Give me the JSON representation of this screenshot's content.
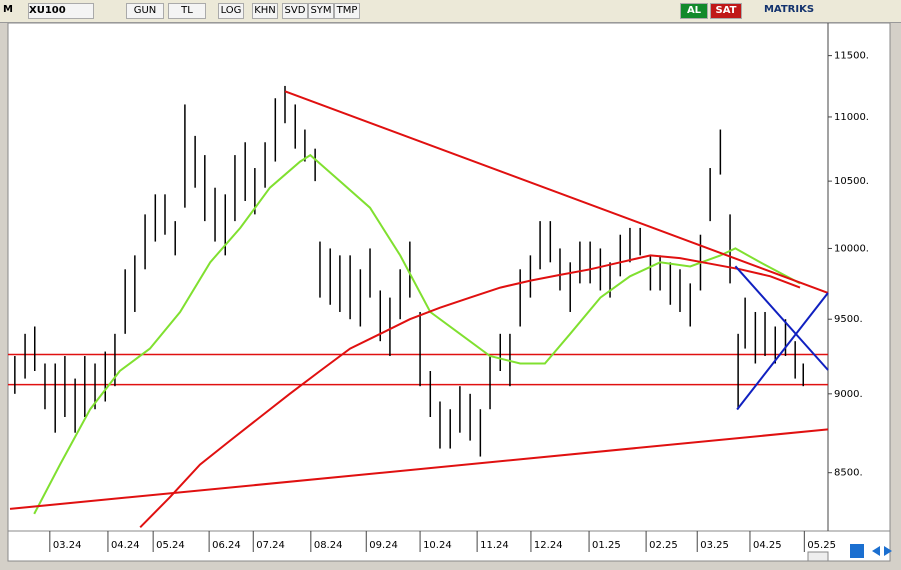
{
  "toolbar": {
    "logo": "M",
    "symbol": "XU100",
    "buttons": [
      "GUN",
      "TL",
      "LOG",
      "KHN",
      "SVD",
      "SYM",
      "TMP"
    ],
    "buy": "AL",
    "sell": "SAT",
    "brand": "MATRIKS"
  },
  "chart_data": {
    "type": "ohlc",
    "log_scale": true,
    "xlim": [
      0,
      15.2
    ],
    "ylim": [
      8166,
      11775
    ],
    "xticks": [
      {
        "value": 0.74,
        "label": "03.24"
      },
      {
        "value": 1.82,
        "label": "04.24"
      },
      {
        "value": 2.66,
        "label": "05.24"
      },
      {
        "value": 3.7,
        "label": "06.24"
      },
      {
        "value": 4.52,
        "label": "07.24"
      },
      {
        "value": 5.59,
        "label": "08.24"
      },
      {
        "value": 6.62,
        "label": "09.24"
      },
      {
        "value": 7.62,
        "label": "10.24"
      },
      {
        "value": 8.68,
        "label": "11.24"
      },
      {
        "value": 9.68,
        "label": "12.24"
      },
      {
        "value": 10.76,
        "label": "01.25"
      },
      {
        "value": 11.82,
        "label": "02.25"
      },
      {
        "value": 12.77,
        "label": "03.25"
      },
      {
        "value": 13.75,
        "label": "04.25"
      },
      {
        "value": 14.76,
        "label": "05.25"
      }
    ],
    "yticks": [
      {
        "value": 8500,
        "label": "8500."
      },
      {
        "value": 9000,
        "label": "9000."
      },
      {
        "value": 9500,
        "label": "9500."
      },
      {
        "value": 10000,
        "label": "10000."
      },
      {
        "value": 10500,
        "label": "10500."
      },
      {
        "value": 11000,
        "label": "11000."
      },
      {
        "value": 11500,
        "label": "11500."
      }
    ],
    "bars": {
      "color": "#000000",
      "x": [
        0.09,
        0.28,
        0.46,
        0.65,
        0.84,
        1.02,
        1.21,
        1.39,
        1.58,
        1.77,
        1.95,
        2.14,
        2.32,
        2.51,
        2.7,
        2.88,
        3.07,
        3.25,
        3.44,
        3.62,
        3.81,
        4.0,
        4.18,
        4.37,
        4.55,
        4.74,
        4.93,
        5.11,
        5.3,
        5.48,
        5.67,
        5.76,
        5.95,
        6.13,
        6.32,
        6.51,
        6.69,
        6.88,
        7.06,
        7.25,
        7.43,
        7.62,
        7.81,
        7.99,
        8.18,
        8.36,
        8.55,
        8.74,
        8.92,
        9.11,
        9.29,
        9.48,
        9.67,
        9.85,
        10.04,
        10.22,
        10.41,
        10.59,
        10.78,
        10.97,
        11.15,
        11.34,
        11.52,
        11.71,
        11.9,
        12.08,
        12.27,
        12.45,
        12.64,
        12.83,
        13.01,
        13.2,
        13.38,
        13.53,
        13.66,
        13.85,
        14.03,
        14.22,
        14.41,
        14.59,
        14.74
      ],
      "high": [
        9250,
        9400,
        9450,
        9200,
        9200,
        9250,
        9100,
        9250,
        9200,
        9280,
        9400,
        9850,
        9950,
        10250,
        10400,
        10400,
        10200,
        11100,
        10850,
        10700,
        10450,
        10400,
        10700,
        10800,
        10600,
        10800,
        11150,
        11250,
        11100,
        10900,
        10750,
        10050,
        10000,
        9950,
        9950,
        9850,
        10000,
        9700,
        9650,
        9850,
        10050,
        9550,
        9150,
        8950,
        8900,
        9050,
        9000,
        8900,
        9250,
        9400,
        9400,
        9850,
        9950,
        10200,
        10200,
        10000,
        9900,
        10050,
        10050,
        10000,
        9900,
        10100,
        10150,
        10150,
        9950,
        9950,
        9900,
        9850,
        9750,
        10100,
        10600,
        10900,
        10250,
        9400,
        9650,
        9550,
        9550,
        9450,
        9500,
        9350,
        9200
      ],
      "low": [
        9000,
        9100,
        9150,
        8900,
        8750,
        8850,
        8750,
        8850,
        8900,
        8950,
        9050,
        9400,
        9550,
        9850,
        10050,
        10100,
        9950,
        10300,
        10450,
        10200,
        10050,
        9950,
        10200,
        10350,
        10250,
        10450,
        10650,
        10950,
        10750,
        10650,
        10500,
        9650,
        9600,
        9550,
        9500,
        9450,
        9650,
        9350,
        9250,
        9500,
        9650,
        9050,
        8850,
        8650,
        8650,
        8750,
        8700,
        8600,
        8900,
        9150,
        9050,
        9450,
        9650,
        9850,
        9900,
        9700,
        9550,
        9750,
        9750,
        9700,
        9650,
        9800,
        9900,
        9950,
        9700,
        9700,
        9600,
        9550,
        9450,
        9700,
        10200,
        10550,
        9750,
        8900,
        9300,
        9200,
        9250,
        9200,
        9250,
        9100,
        9050
      ]
    },
    "overlays": [
      {
        "color": "#80e030",
        "x": [
          0.45,
          0.93,
          1.49,
          2.04,
          2.6,
          3.16,
          3.72,
          4.28,
          4.83,
          5.39,
          5.58,
          6.13,
          6.69,
          7.25,
          7.81,
          8.36,
          8.92,
          9.48,
          9.94,
          10.41,
          10.97,
          11.52,
          12.08,
          12.64,
          13.2,
          13.48,
          13.94,
          14.68
        ],
        "values": [
          8250,
          8550,
          8900,
          9150,
          9300,
          9550,
          9900,
          10150,
          10450,
          10650,
          10700,
          10500,
          10300,
          9950,
          9550,
          9400,
          9250,
          9200,
          9200,
          9400,
          9650,
          9800,
          9900,
          9870,
          9950,
          10000,
          9900,
          9750
        ]
      },
      {
        "color": "#e01010",
        "x": [
          2.42,
          2.97,
          3.53,
          4.09,
          4.65,
          5.2,
          5.76,
          6.32,
          6.88,
          7.43,
          7.99,
          8.55,
          9.11,
          9.67,
          10.22,
          10.78,
          11.34,
          11.9,
          12.45,
          13.01,
          13.57,
          14.13,
          14.68
        ],
        "values": [
          8170,
          8350,
          8550,
          8700,
          8850,
          9000,
          9150,
          9300,
          9400,
          9500,
          9580,
          9650,
          9720,
          9770,
          9810,
          9850,
          9900,
          9950,
          9930,
          9890,
          9850,
          9800,
          9720
        ]
      },
      {
        "color": "#e01010",
        "x": [
          5.11,
          15.2
        ],
        "values": [
          11206,
          9683
        ]
      },
      {
        "color": "#e01010",
        "x": [
          0,
          15.2
        ],
        "values": [
          8280,
          8771
        ]
      },
      {
        "color": "#1020c0",
        "x": [
          13.48,
          15.2
        ],
        "values": [
          9872,
          9157
        ]
      },
      {
        "color": "#1020c0",
        "x": [
          13.51,
          15.2
        ],
        "values": [
          8898,
          9683
        ]
      }
    ],
    "hlines": [
      {
        "color": "#e01010",
        "value": 9260
      },
      {
        "color": "#e01010",
        "value": 9060
      }
    ]
  }
}
